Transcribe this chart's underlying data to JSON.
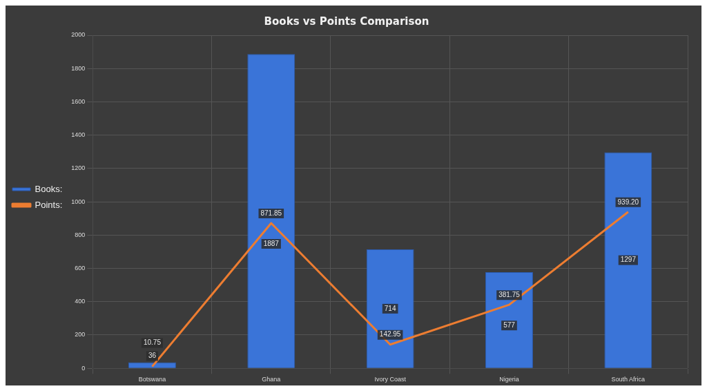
{
  "chart_data": {
    "type": "bar",
    "title": "Books vs Points Comparison",
    "categories": [
      "Botswana",
      "Ghana",
      "Ivory Coast",
      "Nigeria",
      "South Africa"
    ],
    "series": [
      {
        "name": "Books:",
        "color": "#3a74d8",
        "values": [
          36,
          1887,
          714,
          577,
          1297
        ],
        "value_labels": [
          "36",
          "1887",
          "714",
          "577",
          "1297"
        ]
      },
      {
        "name": "Points:",
        "type": "line",
        "color": "#ed7d31",
        "values": [
          10.75,
          871.85,
          142.95,
          381.75,
          939.2
        ],
        "value_labels": [
          "10.75",
          "871.85",
          "142.95",
          "381.75",
          "939.20"
        ],
        "marker": "none"
      }
    ],
    "ylim": [
      0,
      2000
    ],
    "yticks": [
      0,
      200,
      400,
      600,
      800,
      1000,
      1200,
      1400,
      1600,
      1800,
      2000
    ],
    "grid": true,
    "legend": "left"
  }
}
